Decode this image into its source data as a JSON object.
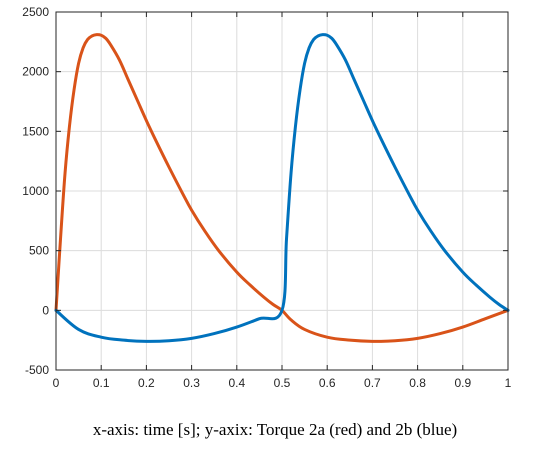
{
  "caption": "x-axis: time [s]; y-axix: Torque 2a (red) and 2b (blue)",
  "chart_data": {
    "type": "line",
    "xlim": [
      0,
      1
    ],
    "ylim": [
      -500,
      2500
    ],
    "grid": true,
    "legend": "none",
    "xticks": [
      0,
      0.1,
      0.2,
      0.3,
      0.4,
      0.5,
      0.6,
      0.7,
      0.8,
      0.9,
      1
    ],
    "xtick_labels": [
      "0",
      "0.1",
      "0.2",
      "0.3",
      "0.4",
      "0.5",
      "0.6",
      "0.7",
      "0.8",
      "0.9",
      "1"
    ],
    "yticks": [
      -500,
      0,
      500,
      1000,
      1500,
      2000,
      2500
    ],
    "ytick_labels": [
      "-500",
      "0",
      "500",
      "1000",
      "1500",
      "2000",
      "2500"
    ],
    "series": [
      {
        "color": "#d95319",
        "x": [
          0,
          0.01,
          0.02,
          0.03,
          0.04,
          0.05,
          0.06,
          0.07,
          0.08,
          0.09,
          0.1,
          0.11,
          0.12,
          0.14,
          0.16,
          0.18,
          0.2,
          0.22,
          0.25,
          0.28,
          0.3,
          0.33,
          0.36,
          0.4,
          0.43,
          0.46,
          0.48,
          0.5,
          0.52,
          0.55,
          0.6,
          0.65,
          0.7,
          0.75,
          0.8,
          0.85,
          0.9,
          0.95,
          1.0
        ],
        "y": [
          0,
          600,
          1150,
          1550,
          1850,
          2070,
          2200,
          2270,
          2300,
          2310,
          2305,
          2280,
          2230,
          2100,
          1930,
          1760,
          1590,
          1430,
          1200,
          980,
          840,
          660,
          500,
          320,
          210,
          110,
          50,
          0,
          -80,
          -160,
          -225,
          -250,
          -260,
          -255,
          -235,
          -195,
          -140,
          -70,
          0
        ]
      },
      {
        "color": "#0072bd",
        "x": [
          0,
          0.05,
          0.1,
          0.15,
          0.2,
          0.25,
          0.3,
          0.35,
          0.4,
          0.45,
          0.5,
          0.51,
          0.52,
          0.53,
          0.54,
          0.55,
          0.56,
          0.57,
          0.58,
          0.59,
          0.6,
          0.61,
          0.62,
          0.64,
          0.66,
          0.68,
          0.7,
          0.72,
          0.75,
          0.78,
          0.8,
          0.83,
          0.86,
          0.9,
          0.93,
          0.96,
          0.98,
          1.0
        ],
        "y": [
          0,
          -160,
          -225,
          -250,
          -260,
          -255,
          -235,
          -195,
          -140,
          -70,
          0,
          600,
          1150,
          1550,
          1850,
          2070,
          2200,
          2270,
          2300,
          2310,
          2305,
          2280,
          2230,
          2100,
          1930,
          1760,
          1590,
          1430,
          1200,
          980,
          840,
          660,
          500,
          320,
          210,
          110,
          50,
          0
        ]
      }
    ]
  }
}
